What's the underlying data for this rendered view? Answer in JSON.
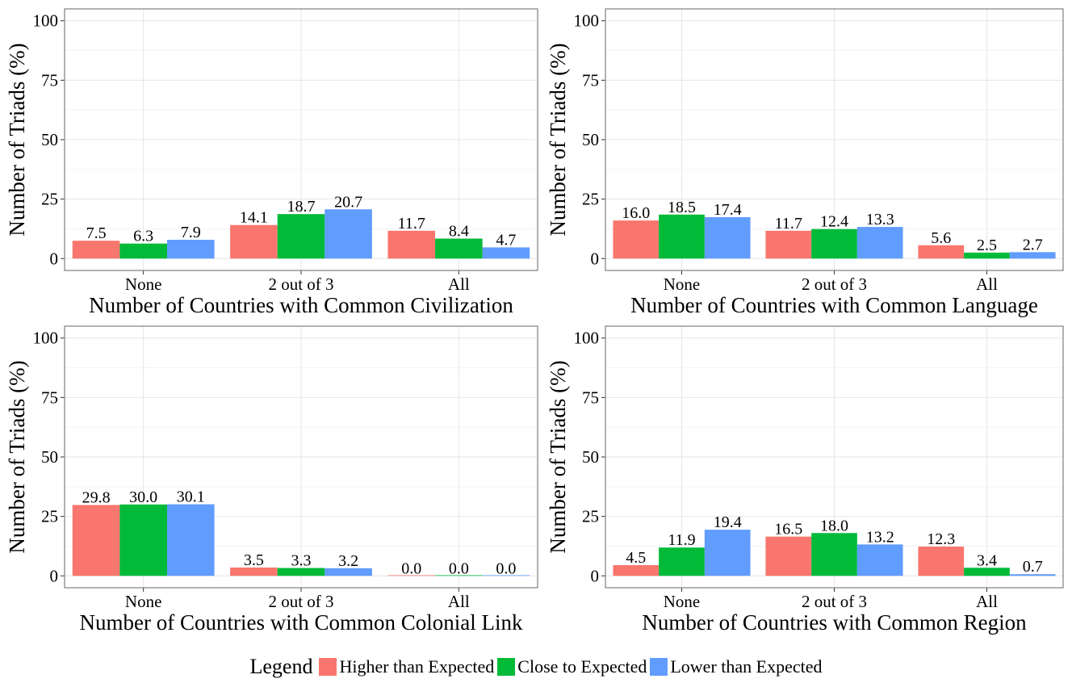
{
  "chart_data": [
    {
      "type": "bar",
      "categories": [
        "None",
        "2 out of 3",
        "All"
      ],
      "xlabel": "Number of Countries with Common Civilization",
      "ylabel": "Number of Triads (%)",
      "ylim": [
        0,
        100
      ],
      "yticks": [
        "0",
        "25",
        "50",
        "75",
        "100"
      ],
      "grid": true,
      "series": [
        {
          "name": "Higher than Expected",
          "values": [
            7.5,
            14.1,
            11.7
          ],
          "labels": [
            "7.5",
            "14.1",
            "11.7"
          ]
        },
        {
          "name": "Close to Expected",
          "values": [
            6.3,
            18.7,
            8.4
          ],
          "labels": [
            "6.3",
            "18.7",
            "8.4"
          ]
        },
        {
          "name": "Lower than Expected",
          "values": [
            7.9,
            20.7,
            4.7
          ],
          "labels": [
            "7.9",
            "20.7",
            "4.7"
          ]
        }
      ]
    },
    {
      "type": "bar",
      "categories": [
        "None",
        "2 out of 3",
        "All"
      ],
      "xlabel": "Number of Countries with Common Language",
      "ylabel": "Number of Triads (%)",
      "ylim": [
        0,
        100
      ],
      "yticks": [
        "0",
        "25",
        "50",
        "75",
        "100"
      ],
      "grid": true,
      "series": [
        {
          "name": "Higher than Expected",
          "values": [
            16.0,
            11.7,
            5.6
          ],
          "labels": [
            "16.0",
            "11.7",
            "5.6"
          ]
        },
        {
          "name": "Close to Expected",
          "values": [
            18.5,
            12.4,
            2.5
          ],
          "labels": [
            "18.5",
            "12.4",
            "2.5"
          ]
        },
        {
          "name": "Lower than Expected",
          "values": [
            17.4,
            13.3,
            2.7
          ],
          "labels": [
            "17.4",
            "13.3",
            "2.7"
          ]
        }
      ]
    },
    {
      "type": "bar",
      "categories": [
        "None",
        "2 out of 3",
        "All"
      ],
      "xlabel": "Number of Countries with Common Colonial Link",
      "ylabel": "Number of Triads (%)",
      "ylim": [
        0,
        100
      ],
      "yticks": [
        "0",
        "25",
        "50",
        "75",
        "100"
      ],
      "grid": true,
      "series": [
        {
          "name": "Higher than Expected",
          "values": [
            29.8,
            3.5,
            0.0
          ],
          "labels": [
            "29.8",
            "3.5",
            "0.0"
          ]
        },
        {
          "name": "Close to Expected",
          "values": [
            30.0,
            3.3,
            0.0
          ],
          "labels": [
            "30.0",
            "3.3",
            "0.0"
          ]
        },
        {
          "name": "Lower than Expected",
          "values": [
            30.1,
            3.2,
            0.0
          ],
          "labels": [
            "30.1",
            "3.2",
            "0.0"
          ]
        }
      ]
    },
    {
      "type": "bar",
      "categories": [
        "None",
        "2 out of 3",
        "All"
      ],
      "xlabel": "Number of Countries with Common Region",
      "ylabel": "Number of Triads (%)",
      "ylim": [
        0,
        100
      ],
      "yticks": [
        "0",
        "25",
        "50",
        "75",
        "100"
      ],
      "grid": true,
      "series": [
        {
          "name": "Higher than Expected",
          "values": [
            4.5,
            16.5,
            12.3
          ],
          "labels": [
            "4.5",
            "16.5",
            "12.3"
          ]
        },
        {
          "name": "Close to Expected",
          "values": [
            11.9,
            18.0,
            3.4
          ],
          "labels": [
            "11.9",
            "18.0",
            "3.4"
          ]
        },
        {
          "name": "Lower than Expected",
          "values": [
            19.4,
            13.2,
            0.7
          ],
          "labels": [
            "19.4",
            "13.2",
            "0.7"
          ]
        }
      ]
    }
  ],
  "legend": {
    "title": "Legend",
    "placement": "bottom",
    "items": [
      {
        "label": "Higher than Expected",
        "color": "#F8766D"
      },
      {
        "label": "Close to Expected",
        "color": "#00BA38"
      },
      {
        "label": "Lower than Expected",
        "color": "#619CFF"
      }
    ]
  }
}
